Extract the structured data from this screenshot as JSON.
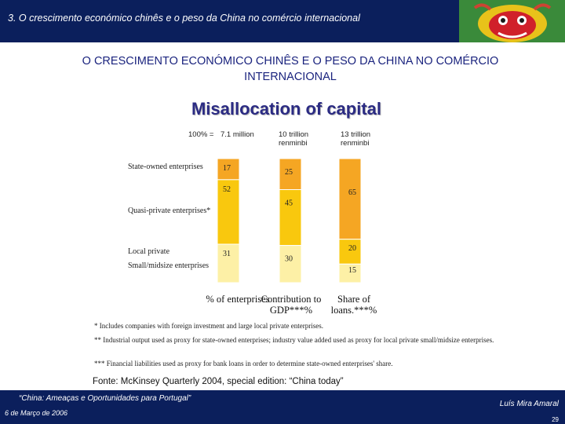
{
  "header": {
    "title": "3. O crescimento económico chinês e o peso da China no comércio internacional"
  },
  "main_title": "O CRESCIMENTO ECONÓMICO CHINÊS E O PESO DA CHINA NO COMÉRCIO INTERNACIONAL",
  "chart_data": {
    "type": "bar",
    "stacked": true,
    "normalized": "100%",
    "title": "Misallocation of capital",
    "categories": [
      "% of enterprises",
      "Contribution to GDP***%",
      "Share of loans.***%"
    ],
    "totals": [
      "100% = 7.1 million",
      "10 trillion renminbi",
      "13 trillion renminbi"
    ],
    "series": [
      {
        "name": "State-owned enterprises",
        "values": [
          17,
          25,
          65
        ],
        "color": "#f5a623"
      },
      {
        "name": "Quasi-private enterprises*",
        "values": [
          52,
          45,
          20
        ],
        "color": "#f9c80e"
      },
      {
        "name": "Local private Small/midsize enterprises",
        "values": [
          31,
          30,
          15
        ],
        "color": "#fdf0a6"
      }
    ],
    "grid": false,
    "legend": "left"
  },
  "labels": {
    "total_prefix": "100% =",
    "totals": [
      "7.1 million",
      "10 trillion renminbi",
      "13 trillion renminbi"
    ],
    "rows": [
      "State-owned enterprises",
      "Quasi-private enterprises*",
      "Local private",
      "Small/midsize enterprises"
    ],
    "categories": [
      "% of enterprises",
      "Contribution to GDP***%",
      "Share of loans.***%"
    ]
  },
  "notes": [
    "* Includes companies with foreign investment and large local private enterprises.",
    "** Industrial output used as proxy for state-owned enterprises; industry value added used as proxy for local private small/midsize enterprises.",
    "*** Financial liabilities used as proxy for bank loans in order to determine state-owned enterprises' share."
  ],
  "source": "Fonte: McKinsey Quarterly 2004, special edition: “China today”",
  "footer": {
    "left_line1": "“China: Ameaças e Oportunidades para Portugal”",
    "left_line2": "6 de Março de 2006",
    "right": "Luís Mira Amaral",
    "page": "29"
  },
  "colors": {
    "navy": "#0b1f5c",
    "title_blue": "#1a237e"
  }
}
